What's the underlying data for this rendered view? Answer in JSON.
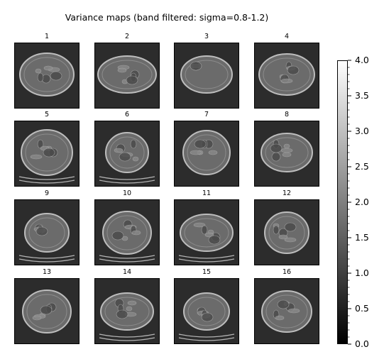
{
  "figure": {
    "title": "Variance maps (band filtered: sigma=0.8-1.2)"
  },
  "chart_data": {
    "type": "heatmap",
    "title": "Variance maps (band filtered: sigma=0.8-1.2)",
    "colormap": "gray",
    "layout": {
      "rows": 4,
      "cols": 4
    },
    "panels": [
      {
        "label": "1"
      },
      {
        "label": "2"
      },
      {
        "label": "3"
      },
      {
        "label": "4"
      },
      {
        "label": "5"
      },
      {
        "label": "6"
      },
      {
        "label": "7"
      },
      {
        "label": "8"
      },
      {
        "label": "9"
      },
      {
        "label": "10"
      },
      {
        "label": "11"
      },
      {
        "label": "12"
      },
      {
        "label": "13"
      },
      {
        "label": "14"
      },
      {
        "label": "15"
      },
      {
        "label": "16"
      }
    ],
    "colorbar": {
      "range": [
        0.0,
        4.0
      ],
      "ticks": [
        0.0,
        0.5,
        1.0,
        1.5,
        2.0,
        2.5,
        3.0,
        3.5,
        4.0
      ],
      "tick_labels": [
        "0.0",
        "0.5",
        "1.0",
        "1.5",
        "2.0",
        "2.5",
        "3.0",
        "3.5",
        "4.0"
      ],
      "colors": {
        "low": "#000000",
        "high": "#ffffff"
      }
    },
    "grid": false,
    "legend": "none",
    "colors": {
      "background": "#2c2c2c",
      "body_fill": "#6b6b6b",
      "body_edge": "#bdbdbd"
    }
  }
}
